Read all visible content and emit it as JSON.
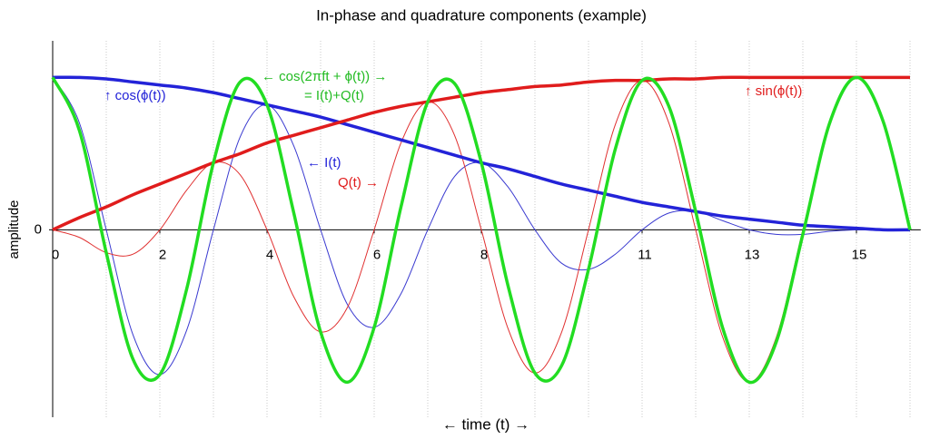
{
  "chart_data": {
    "type": "line",
    "title": "In-phase and quadrature components (example)",
    "x_label": "← time (t) →",
    "y_label": "amplitude",
    "x": [
      0,
      0.5,
      1,
      1.5,
      2,
      2.5,
      3,
      3.5,
      4,
      4.5,
      5,
      5.5,
      6,
      6.5,
      7,
      7.5,
      8,
      8.5,
      9,
      9.5,
      10,
      10.5,
      11,
      11.5,
      12,
      12.5,
      13,
      13.5,
      14,
      14.5,
      15,
      15.5,
      16
    ],
    "series": [
      {
        "color": "#3a3ad0",
        "width": 1,
        "values": [
          1,
          0.7,
          0,
          -0.69,
          -0.95,
          -0.66,
          0,
          0.61,
          0.82,
          0.55,
          0,
          -0.49,
          -0.64,
          -0.42,
          0,
          0.35,
          0.44,
          0.28,
          0,
          -0.22,
          -0.26,
          -0.16,
          0,
          0.11,
          0.12,
          0.06,
          0,
          -0.03,
          -0.03,
          -0.01,
          0,
          0,
          0
        ]
      },
      {
        "color": "#e03030",
        "width": 1,
        "values": [
          0,
          -0.05,
          -0.15,
          -0.16,
          0,
          0.26,
          0.44,
          0.36,
          0,
          -0.44,
          -0.67,
          -0.51,
          0,
          0.57,
          0.84,
          0.62,
          0,
          -0.65,
          -0.94,
          -0.67,
          0,
          0.69,
          0.98,
          0.7,
          0,
          -0.7,
          -1,
          -0.71,
          0,
          0.71,
          1,
          0.71,
          0
        ]
      },
      {
        "color": "#2323d8",
        "width": 3.5,
        "values": [
          1,
          1,
          0.99,
          0.97,
          0.95,
          0.93,
          0.9,
          0.86,
          0.82,
          0.78,
          0.74,
          0.69,
          0.64,
          0.59,
          0.54,
          0.49,
          0.44,
          0.4,
          0.35,
          0.3,
          0.26,
          0.22,
          0.18,
          0.15,
          0.12,
          0.09,
          0.07,
          0.05,
          0.03,
          0.02,
          0.01,
          0,
          0
        ]
      },
      {
        "color": "#e01c1c",
        "width": 3.5,
        "values": [
          0,
          0.08,
          0.15,
          0.23,
          0.3,
          0.37,
          0.44,
          0.5,
          0.57,
          0.62,
          0.67,
          0.72,
          0.77,
          0.81,
          0.84,
          0.87,
          0.9,
          0.92,
          0.94,
          0.95,
          0.97,
          0.98,
          0.98,
          0.99,
          0.99,
          1,
          1,
          1,
          1,
          1,
          1,
          1,
          1
        ]
      },
      {
        "color": "#22dd22",
        "width": 3.5,
        "values": [
          1,
          0.65,
          -0.15,
          -0.85,
          -0.95,
          -0.39,
          0.44,
          0.97,
          0.82,
          0.11,
          -0.67,
          -1,
          -0.64,
          0.15,
          0.84,
          0.96,
          0.44,
          -0.37,
          -0.94,
          -0.89,
          -0.26,
          0.53,
          0.98,
          0.81,
          0.12,
          -0.64,
          -1,
          -0.74,
          -0.03,
          0.7,
          1,
          0.71,
          0
        ]
      }
    ],
    "xlim": [
      0,
      16.2
    ],
    "ylim": [
      -1.23,
      1.24
    ],
    "xticks": [
      0,
      2,
      4,
      6,
      8,
      11,
      13,
      15
    ],
    "xgrid": [
      0,
      1,
      2,
      3,
      4,
      5,
      6,
      7,
      8,
      9,
      10,
      11,
      12,
      13,
      14,
      15,
      16
    ],
    "yticks": [
      0
    ],
    "annotations": [
      "↑ cos(ϕ(t))",
      "←   cos(2πft + ϕ(t))   →",
      "= I(t)+Q(t)",
      "↑ sin(ϕ(t))",
      "← I(t)",
      "Q(t) →"
    ]
  }
}
